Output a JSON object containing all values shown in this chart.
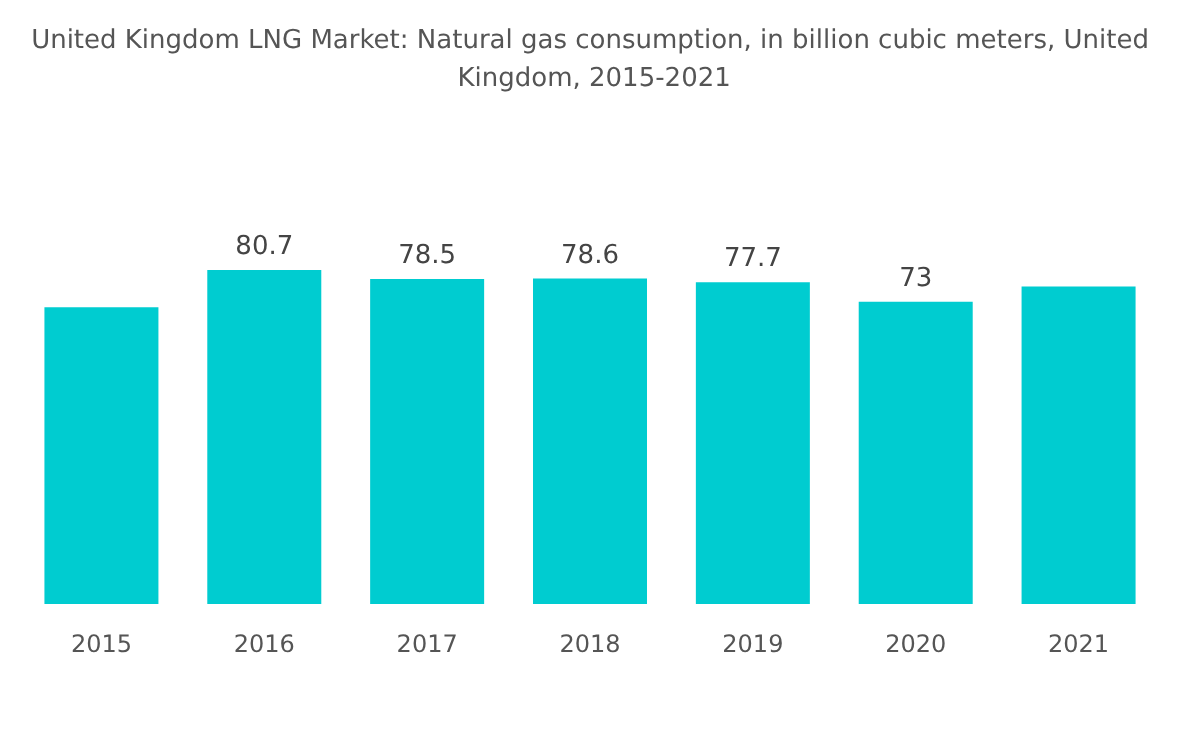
{
  "chart_data": {
    "type": "bar",
    "title": "United Kingdom LNG Market: Natural gas consumption, in billion cubic meters, United Kingdom, 2015-2021",
    "categories": [
      "2015",
      "2016",
      "2017",
      "2018",
      "2019",
      "2020",
      "2021"
    ],
    "values": [
      71.7,
      80.7,
      78.5,
      78.6,
      77.7,
      73,
      76.7
    ],
    "value_labels": [
      null,
      "80.7",
      "78.5",
      "78.6",
      "77.7",
      "73",
      null
    ],
    "color": "#00ccd0"
  }
}
